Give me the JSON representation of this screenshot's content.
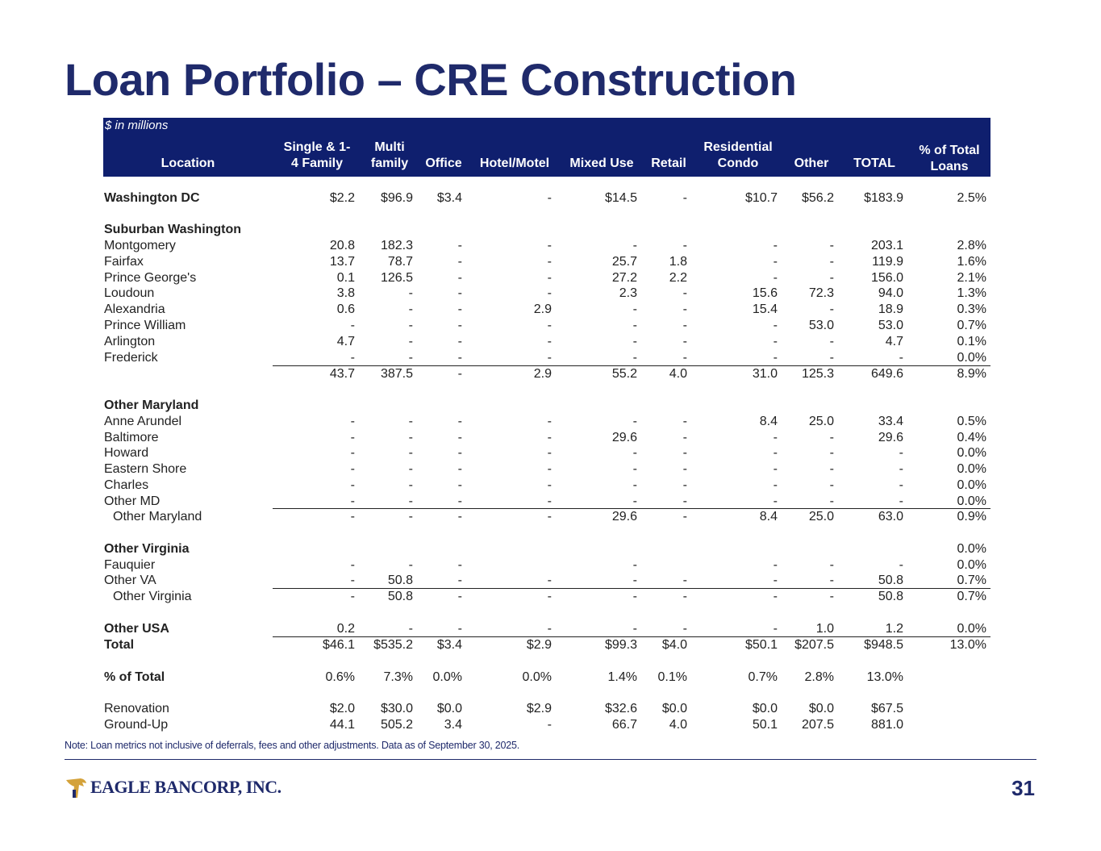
{
  "title": "Loan Portfolio – CRE Construction",
  "table": {
    "units_note": "$ in millions",
    "headers": {
      "location": "Location",
      "single_family": "Single & 1-\n4 Family",
      "multi_family": "Multi\nfamily",
      "office": "Office",
      "hotel": "Hotel/Motel",
      "mixed_use": "Mixed Use",
      "retail": "Retail",
      "res_condo": "Residential\nCondo",
      "other": "Other",
      "total": "TOTAL",
      "pct": "% of Total\nLoans"
    },
    "rows": [
      {
        "label": "Washington DC",
        "style": "bold",
        "v": [
          "$2.2",
          "$96.9",
          "$3.4",
          "-",
          "$14.5",
          "-",
          "$10.7",
          "$56.2",
          "$183.9",
          "2.5%"
        ]
      },
      {
        "label": "Suburban Washington",
        "style": "bold",
        "v": [
          "",
          "",
          "",
          "",
          "",
          "",
          "",
          "",
          "",
          ""
        ]
      },
      {
        "label": "Montgomery",
        "style": "",
        "v": [
          "20.8",
          "182.3",
          "-",
          "-",
          "-",
          "-",
          "-",
          "-",
          "203.1",
          "2.8%"
        ]
      },
      {
        "label": "Fairfax",
        "style": "",
        "v": [
          "13.7",
          "78.7",
          "-",
          "-",
          "25.7",
          "1.8",
          "-",
          "-",
          "119.9",
          "1.6%"
        ]
      },
      {
        "label": "Prince George's",
        "style": "",
        "v": [
          "0.1",
          "126.5",
          "-",
          "-",
          "27.2",
          "2.2",
          "-",
          "-",
          "156.0",
          "2.1%"
        ]
      },
      {
        "label": "Loudoun",
        "style": "",
        "v": [
          "3.8",
          "-",
          "-",
          "-",
          "2.3",
          "-",
          "15.6",
          "72.3",
          "94.0",
          "1.3%"
        ]
      },
      {
        "label": "Alexandria",
        "style": "",
        "v": [
          "0.6",
          "-",
          "-",
          "2.9",
          "-",
          "-",
          "15.4",
          "-",
          "18.9",
          "0.3%"
        ]
      },
      {
        "label": "Prince William",
        "style": "",
        "v": [
          "-",
          "-",
          "-",
          "-",
          "-",
          "-",
          "-",
          "53.0",
          "53.0",
          "0.7%"
        ]
      },
      {
        "label": "Arlington",
        "style": "",
        "v": [
          "4.7",
          "-",
          "-",
          "-",
          "-",
          "-",
          "-",
          "-",
          "4.7",
          "0.1%"
        ]
      },
      {
        "label": "Frederick",
        "style": "",
        "v": [
          "-",
          "-",
          "-",
          "-",
          "-",
          "-",
          "-",
          "-",
          "-",
          "0.0%"
        ]
      },
      {
        "label": "",
        "style": "subtotal",
        "v": [
          "43.7",
          "387.5",
          "-",
          "2.9",
          "55.2",
          "4.0",
          "31.0",
          "125.3",
          "649.6",
          "8.9%"
        ]
      },
      {
        "label": "Other Maryland",
        "style": "bold",
        "v": [
          "",
          "",
          "",
          "",
          "",
          "",
          "",
          "",
          "",
          ""
        ]
      },
      {
        "label": "Anne Arundel",
        "style": "",
        "v": [
          "-",
          "-",
          "-",
          "-",
          "-",
          "-",
          "8.4",
          "25.0",
          "33.4",
          "0.5%"
        ]
      },
      {
        "label": "Baltimore",
        "style": "",
        "v": [
          "-",
          "-",
          "-",
          "-",
          "29.6",
          "-",
          "-",
          "-",
          "29.6",
          "0.4%"
        ]
      },
      {
        "label": "Howard",
        "style": "",
        "v": [
          "-",
          "-",
          "-",
          "-",
          "-",
          "-",
          "-",
          "-",
          "-",
          "0.0%"
        ]
      },
      {
        "label": "Eastern Shore",
        "style": "",
        "v": [
          "-",
          "-",
          "-",
          "-",
          "-",
          "-",
          "-",
          "-",
          "-",
          "0.0%"
        ]
      },
      {
        "label": "Charles",
        "style": "",
        "v": [
          "-",
          "-",
          "-",
          "-",
          "-",
          "-",
          "-",
          "-",
          "-",
          "0.0%"
        ]
      },
      {
        "label": "Other MD",
        "style": "",
        "v": [
          "-",
          "-",
          "-",
          "-",
          "-",
          "-",
          "-",
          "-",
          "-",
          "0.0%"
        ]
      },
      {
        "label": "Other Maryland",
        "style": "subtotal-indent",
        "v": [
          "-",
          "-",
          "-",
          "-",
          "29.6",
          "-",
          "8.4",
          "25.0",
          "63.0",
          "0.9%"
        ]
      },
      {
        "label": "Other Virginia",
        "style": "bold",
        "v": [
          "",
          "",
          "",
          "",
          "",
          "",
          "",
          "",
          "",
          "0.0%"
        ]
      },
      {
        "label": "Fauquier",
        "style": "",
        "v": [
          "-",
          "-",
          "-",
          "",
          "-",
          "",
          "-",
          "-",
          "-",
          "0.0%"
        ]
      },
      {
        "label": "Other VA",
        "style": "",
        "v": [
          "-",
          "50.8",
          "-",
          "-",
          "-",
          "-",
          "-",
          "-",
          "50.8",
          "0.7%"
        ]
      },
      {
        "label": "Other Virginia",
        "style": "subtotal-indent",
        "v": [
          "-",
          "50.8",
          "-",
          "-",
          "-",
          "-",
          "-",
          "-",
          "50.8",
          "0.7%"
        ]
      },
      {
        "label": "Other USA",
        "style": "bold",
        "v": [
          "0.2",
          "-",
          "-",
          "-",
          "-",
          "-",
          "-",
          "1.0",
          "1.2",
          "0.0%"
        ]
      },
      {
        "label": "Total",
        "style": "bold-total",
        "v": [
          "$46.1",
          "$535.2",
          "$3.4",
          "$2.9",
          "$99.3",
          "$4.0",
          "$50.1",
          "$207.5",
          "$948.5",
          "13.0%"
        ]
      },
      {
        "label": "% of Total",
        "style": "bold-pct",
        "v": [
          "0.6%",
          "7.3%",
          "0.0%",
          "0.0%",
          "1.4%",
          "0.1%",
          "0.7%",
          "2.8%",
          "13.0%",
          ""
        ]
      },
      {
        "label": "Renovation",
        "style": "",
        "v": [
          "$2.0",
          "$30.0",
          "$0.0",
          "$2.9",
          "$32.6",
          "$0.0",
          "$0.0",
          "$0.0",
          "$67.5",
          ""
        ]
      },
      {
        "label": "Ground-Up",
        "style": "",
        "v": [
          "44.1",
          "505.2",
          "3.4",
          "-",
          "66.7",
          "4.0",
          "50.1",
          "207.5",
          "881.0",
          ""
        ]
      }
    ]
  },
  "note": "Note: Loan metrics not inclusive of deferrals, fees and other adjustments. Data as of September 30, 2025.",
  "footer": {
    "logo_text": "EAGLE BANCORP, INC.",
    "page_number": "31"
  },
  "colors": {
    "navy": "#1f2a6b",
    "header_bg": "#0f1f6e",
    "logo_gold": "#d4a23a"
  }
}
